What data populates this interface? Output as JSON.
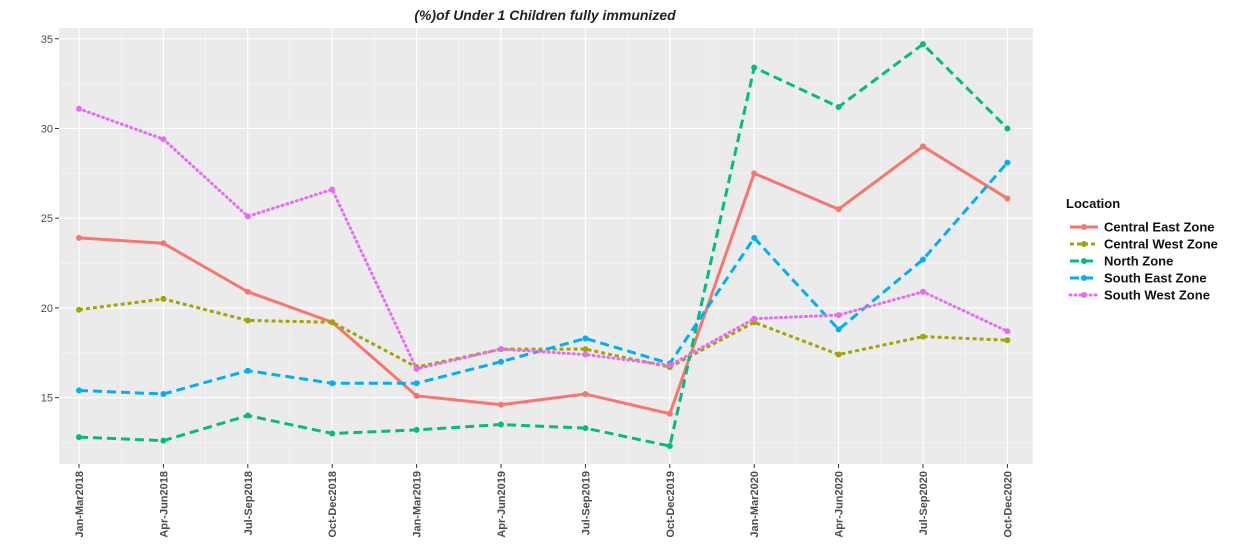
{
  "chart_data": {
    "type": "line",
    "title": "(%)of Under 1 Children fully immunized",
    "xlabel": "",
    "ylabel": "",
    "categories": [
      "Jan-Mar2018",
      "Apr-Jun2018",
      "Jul-Sep2018",
      "Oct-Dec2018",
      "Jan-Mar2019",
      "Apr-Jun2019",
      "Jul-Sep2019",
      "Oct-Dec2019",
      "Jan-Mar2020",
      "Apr-Jun2020",
      "Jul-Sep2020",
      "Oct-Dec2020"
    ],
    "ylim": [
      11.3,
      35.6
    ],
    "yticks": [
      15,
      20,
      25,
      30,
      35
    ],
    "grid": true,
    "legend": {
      "title": "Location",
      "position": "right"
    },
    "series": [
      {
        "name": "Central East Zone",
        "color": "#F8766D",
        "dash": "solid",
        "values": [
          23.9,
          23.6,
          20.9,
          19.2,
          15.1,
          14.6,
          15.2,
          14.1,
          27.5,
          25.5,
          29.0,
          26.1
        ]
      },
      {
        "name": "Central West Zone",
        "color": "#A3A500",
        "dash": "short-dash",
        "values": [
          19.9,
          20.5,
          19.3,
          19.2,
          16.7,
          17.7,
          17.7,
          16.7,
          19.2,
          17.4,
          18.4,
          18.2
        ]
      },
      {
        "name": "North Zone",
        "color": "#00BF7D",
        "dash": "long-dash",
        "values": [
          12.8,
          12.6,
          14.0,
          13.0,
          13.2,
          13.5,
          13.3,
          12.3,
          33.4,
          31.2,
          34.7,
          30.0
        ]
      },
      {
        "name": "South East Zone",
        "color": "#00B0F6",
        "dash": "long-dash",
        "values": [
          15.4,
          15.2,
          16.5,
          15.8,
          15.8,
          17.0,
          18.3,
          16.9,
          23.9,
          18.8,
          22.7,
          28.1
        ]
      },
      {
        "name": "South West Zone",
        "color": "#E76BF3",
        "dash": "dotted",
        "values": [
          31.1,
          29.4,
          25.1,
          26.6,
          16.6,
          17.7,
          17.4,
          16.8,
          19.4,
          19.6,
          20.9,
          18.7
        ]
      }
    ]
  }
}
